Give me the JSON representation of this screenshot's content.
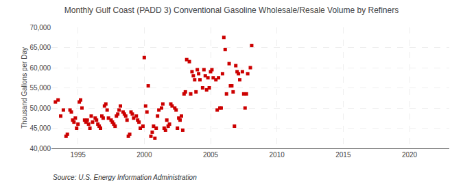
{
  "chart_data": {
    "type": "scatter",
    "title": "Monthly Gulf Coast (PADD 3) Conventional Gasoline Wholesale/Resale Volume by Refiners",
    "ylabel": "Thousand Gallons per Day",
    "annotations": [
      "Source: U.S. Energy Information Administration"
    ],
    "color": "#CC0000",
    "marker": "square",
    "grid": true,
    "xlim": [
      1993.0,
      2023.0
    ],
    "ylim": [
      40000,
      70000
    ],
    "xticks": [
      1995,
      2000,
      2005,
      2010,
      2015,
      2020
    ],
    "yticks": [
      {
        "value": 40000,
        "label": "40,000"
      },
      {
        "value": 45000,
        "label": "45,000"
      },
      {
        "value": 50000,
        "label": "50,000"
      },
      {
        "value": 55000,
        "label": "55,000"
      },
      {
        "value": 60000,
        "label": "60,000"
      },
      {
        "value": 65000,
        "label": "65,000"
      },
      {
        "value": 70000,
        "label": "70,000"
      }
    ],
    "x": [
      1993.3,
      1993.5,
      1993.7,
      1993.9,
      1994.1,
      1994.2,
      1994.4,
      1994.5,
      1994.6,
      1994.7,
      1994.8,
      1994.9,
      1995.0,
      1995.1,
      1995.2,
      1995.3,
      1995.5,
      1995.6,
      1995.7,
      1995.8,
      1995.9,
      1996.0,
      1996.1,
      1996.3,
      1996.4,
      1996.5,
      1996.6,
      1996.7,
      1996.8,
      1996.9,
      1997.0,
      1997.1,
      1997.2,
      1997.3,
      1997.5,
      1997.6,
      1997.7,
      1997.8,
      1997.9,
      1998.0,
      1998.1,
      1998.2,
      1998.4,
      1998.5,
      1998.6,
      1998.7,
      1998.8,
      1998.9,
      1999.0,
      1999.1,
      1999.2,
      1999.4,
      1999.5,
      1999.6,
      1999.7,
      1999.9,
      2000.0,
      2000.1,
      2000.2,
      2000.3,
      2000.5,
      2000.6,
      2000.7,
      2000.8,
      2000.9,
      2001.0,
      2001.1,
      2001.3,
      2001.4,
      2001.5,
      2001.6,
      2001.7,
      2001.8,
      2001.9,
      2002.0,
      2002.1,
      2002.3,
      2002.4,
      2002.5,
      2002.6,
      2002.7,
      2002.8,
      2002.9,
      2003.0,
      2003.1,
      2003.2,
      2003.4,
      2003.5,
      2003.6,
      2003.7,
      2003.8,
      2003.9,
      2004.0,
      2004.1,
      2004.2,
      2004.4,
      2004.5,
      2004.6,
      2004.7,
      2004.8,
      2004.9,
      2005.0,
      2005.1,
      2005.2,
      2005.4,
      2005.5,
      2005.6,
      2005.7,
      2005.8,
      2005.9,
      2006.0,
      2006.1,
      2006.2,
      2006.4,
      2006.5,
      2006.6,
      2006.7,
      2006.8,
      2006.9,
      2007.0,
      2007.1,
      2007.2,
      2007.4,
      2007.5,
      2007.6,
      2007.7,
      2007.8,
      2008.0,
      2008.1
    ],
    "values": [
      51500,
      52000,
      48000,
      49500,
      43000,
      43500,
      49500,
      49000,
      47000,
      46500,
      47500,
      45000,
      46000,
      51500,
      52000,
      50000,
      47000,
      46500,
      47000,
      46000,
      45000,
      48000,
      46500,
      47500,
      47000,
      46000,
      45500,
      45000,
      48000,
      47500,
      50500,
      51000,
      49500,
      47500,
      47000,
      46500,
      46000,
      45500,
      48000,
      48500,
      49500,
      50500,
      49000,
      48500,
      48000,
      47000,
      43000,
      43500,
      49000,
      48500,
      47500,
      48000,
      47000,
      46500,
      45000,
      45500,
      62500,
      50500,
      49000,
      55500,
      43000,
      44000,
      45500,
      42500,
      45000,
      48000,
      49500,
      50000,
      51000,
      45000,
      44500,
      47000,
      45500,
      46000,
      51000,
      50500,
      50000,
      49500,
      45000,
      47500,
      47000,
      48000,
      44500,
      53500,
      54000,
      62000,
      61500,
      53500,
      59000,
      58000,
      57000,
      54000,
      59500,
      58500,
      57000,
      55000,
      59500,
      58000,
      54500,
      57500,
      55000,
      59000,
      59500,
      57500,
      57000,
      49500,
      57500,
      50000,
      50000,
      58500,
      67500,
      64500,
      53500,
      61000,
      55500,
      55500,
      54000,
      45500,
      60500,
      59000,
      58500,
      57000,
      59000,
      53500,
      50000,
      53500,
      58500,
      60000,
      65500
    ]
  }
}
